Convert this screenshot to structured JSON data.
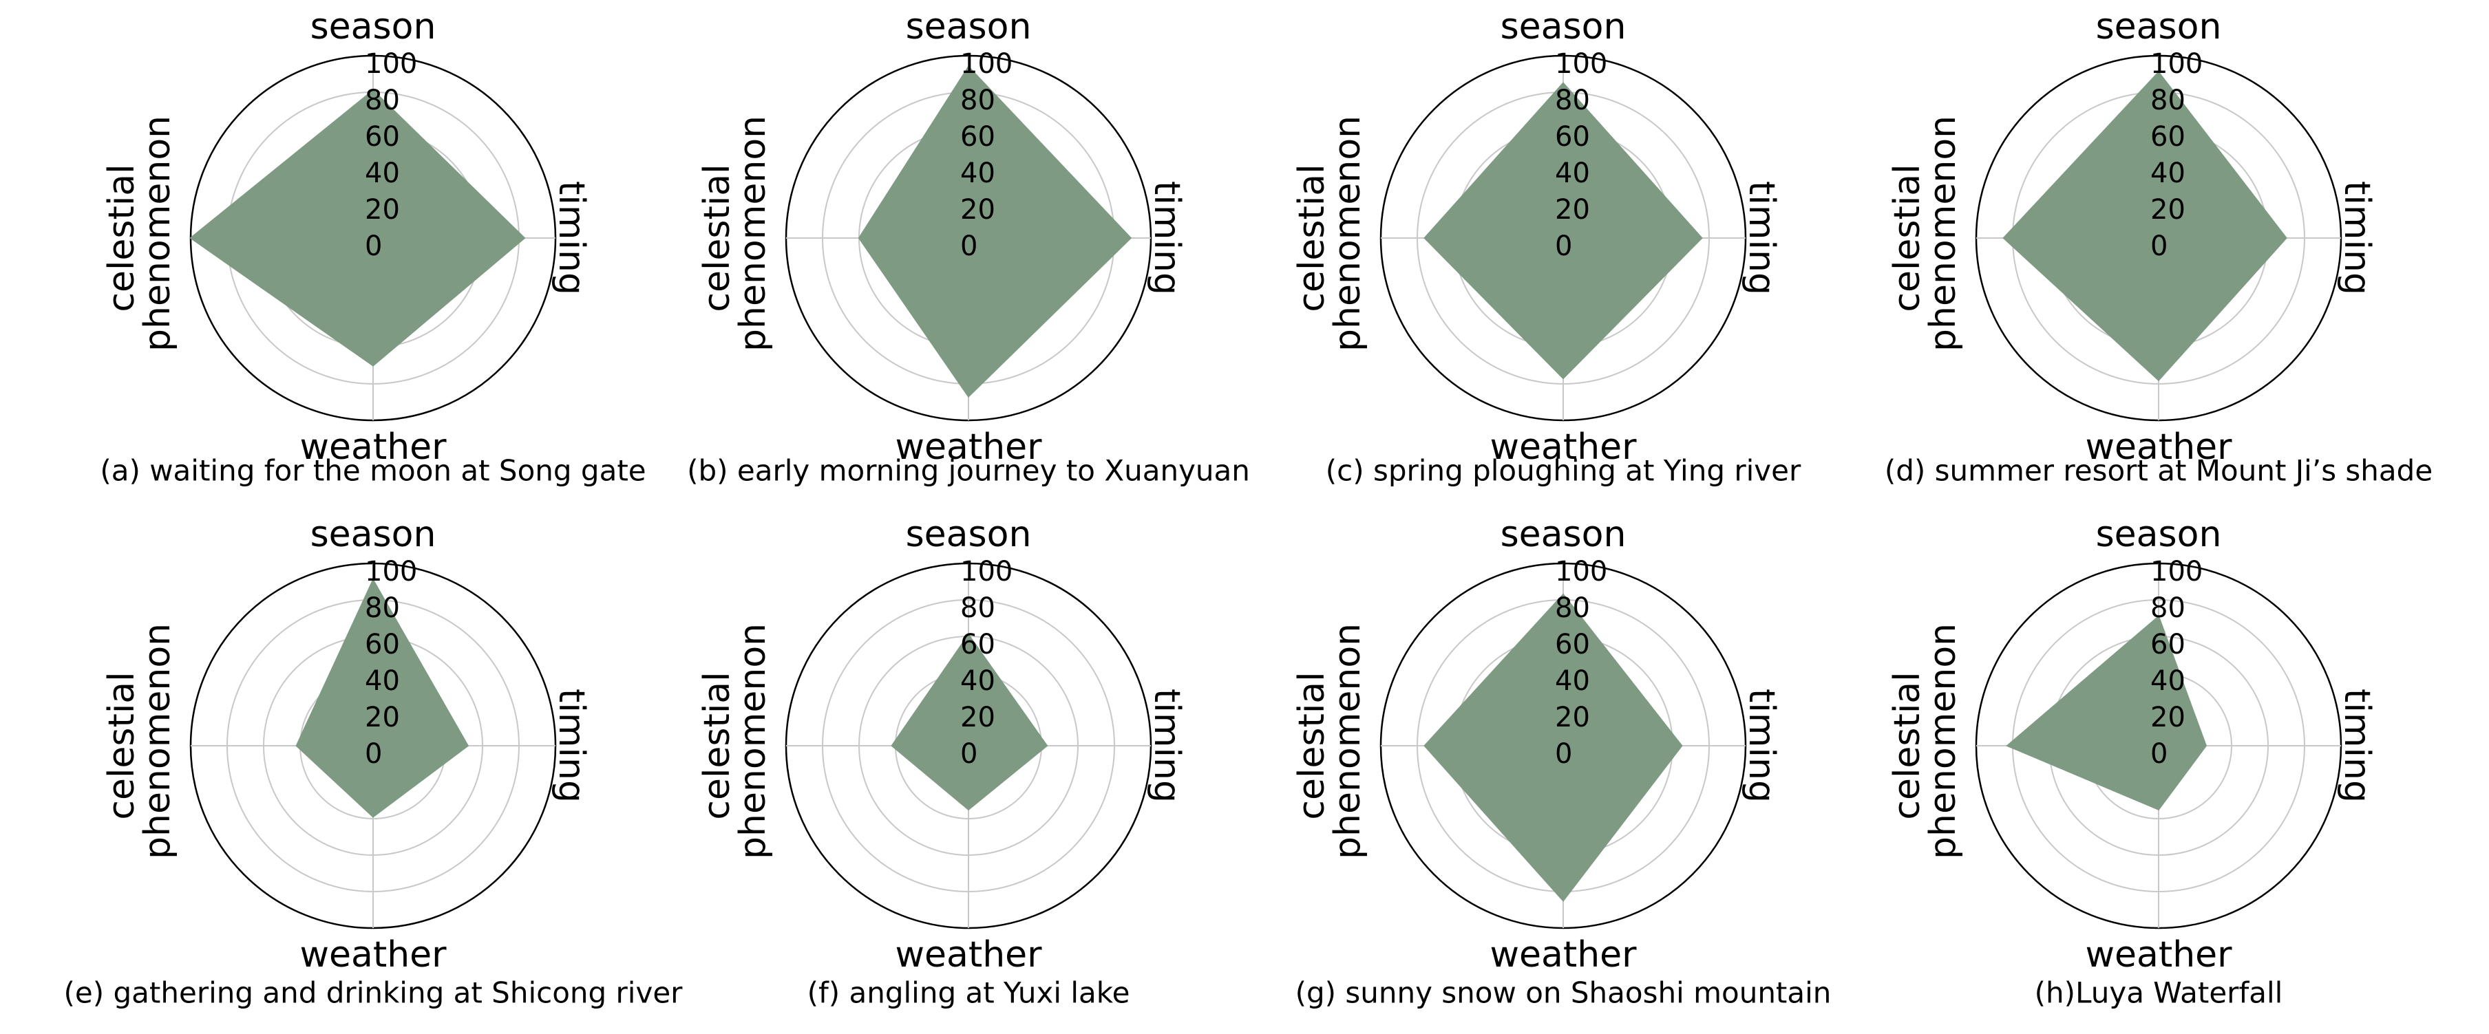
{
  "chart_data": [
    {
      "type": "radar",
      "title": "(a) waiting for the moon at Song gate",
      "categories": [
        "season",
        "timing",
        "weather",
        "celestial phenomenon"
      ],
      "values": [
        81,
        83,
        70,
        100
      ],
      "color": "#7e9a82",
      "rlim": [
        0,
        100
      ],
      "rticks": [
        0,
        20,
        40,
        60,
        80,
        100
      ]
    },
    {
      "type": "radar",
      "title": "(b) early morning journey to Xuanyuan",
      "categories": [
        "season",
        "timing",
        "weather",
        "celestial phenomenon"
      ],
      "values": [
        94,
        89,
        87,
        60
      ],
      "color": "#7e9a82",
      "rlim": [
        0,
        100
      ],
      "rticks": [
        0,
        20,
        40,
        60,
        80,
        100
      ]
    },
    {
      "type": "radar",
      "title": "(c) spring ploughing at Ying river",
      "categories": [
        "season",
        "timing",
        "weather",
        "celestial phenomenon"
      ],
      "values": [
        85,
        76,
        77,
        76
      ],
      "color": "#7e9a82",
      "rlim": [
        0,
        100
      ],
      "rticks": [
        0,
        20,
        40,
        60,
        80,
        100
      ]
    },
    {
      "type": "radar",
      "title": "(d) summer resort at Mount Ji’s shade",
      "categories": [
        "season",
        "timing",
        "weather",
        "celestial phenomenon"
      ],
      "values": [
        91,
        70,
        78,
        85
      ],
      "color": "#7e9a82",
      "rlim": [
        0,
        100
      ],
      "rticks": [
        0,
        20,
        40,
        60,
        80,
        100
      ]
    },
    {
      "type": "radar",
      "title": "(e) gathering and drinking at Shicong river",
      "categories": [
        "season",
        "timing",
        "weather",
        "celestial phenomenon"
      ],
      "values": [
        91,
        52,
        39,
        42
      ],
      "color": "#7e9a82",
      "rlim": [
        0,
        100
      ],
      "rticks": [
        0,
        20,
        40,
        60,
        80,
        100
      ]
    },
    {
      "type": "radar",
      "title": "(f) angling at Yuxi lake",
      "categories": [
        "season",
        "timing",
        "weather",
        "celestial phenomenon"
      ],
      "values": [
        61,
        43,
        35,
        42
      ],
      "color": "#7e9a82",
      "rlim": [
        0,
        100
      ],
      "rticks": [
        0,
        20,
        40,
        60,
        80,
        100
      ]
    },
    {
      "type": "radar",
      "title": "(g) sunny snow on Shaoshi mountain",
      "categories": [
        "season",
        "timing",
        "weather",
        "celestial phenomenon"
      ],
      "values": [
        83,
        65,
        85,
        76
      ],
      "color": "#7e9a82",
      "rlim": [
        0,
        100
      ],
      "rticks": [
        0,
        20,
        40,
        60,
        80,
        100
      ]
    },
    {
      "type": "radar",
      "title": "(h)Luya Waterfall",
      "categories": [
        "season",
        "timing",
        "weather",
        "celestial phenomenon"
      ],
      "values": [
        71,
        26,
        35,
        83
      ],
      "color": "#7e9a82",
      "rlim": [
        0,
        100
      ],
      "rticks": [
        0,
        20,
        40,
        60,
        80,
        100
      ]
    }
  ]
}
